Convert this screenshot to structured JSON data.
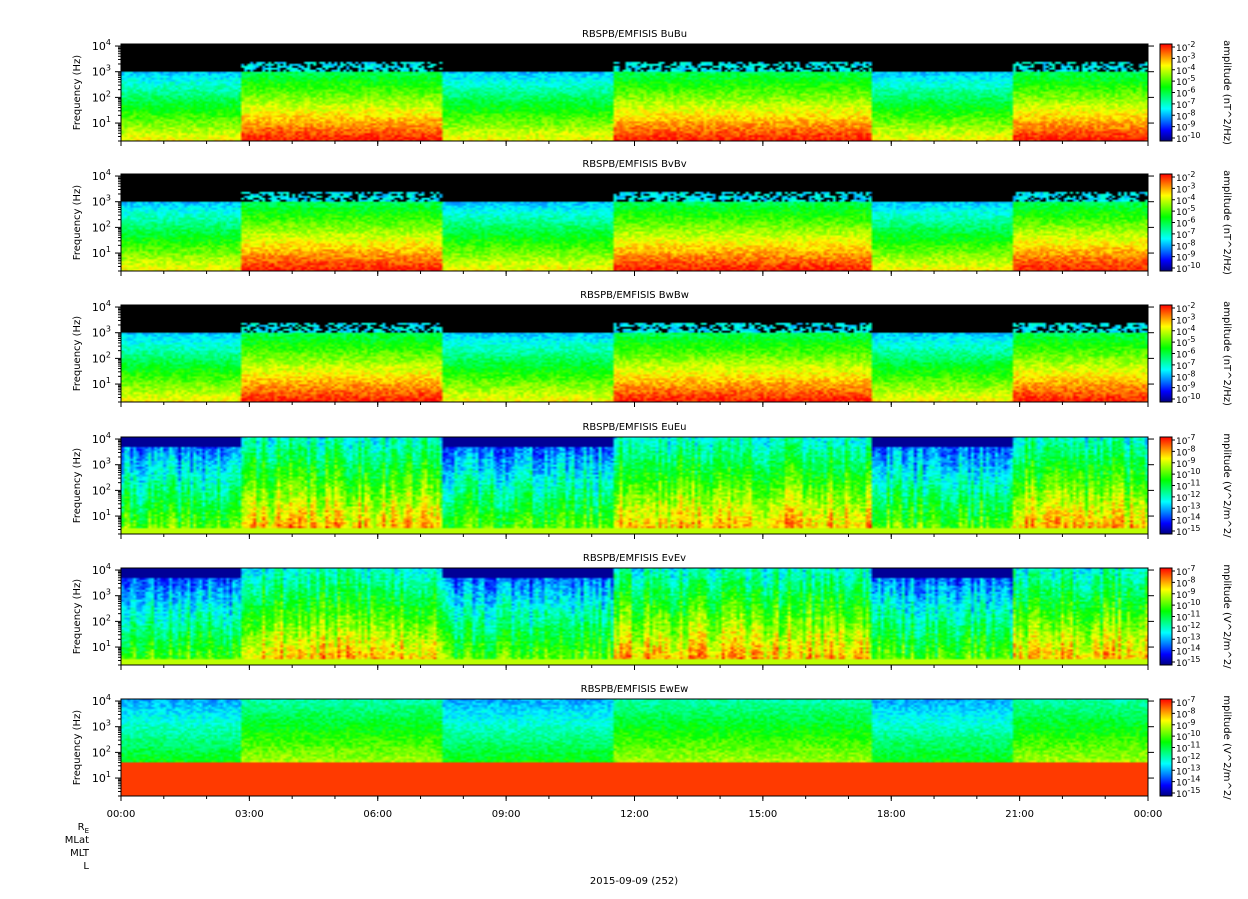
{
  "chart_data": {
    "type": "heatmap",
    "panels": [
      {
        "title": "RBSPB/EMFISIS  BuBu",
        "ylabel": "Frequency (Hz)",
        "cbar_label": "amplitude (nT^2/Hz)",
        "cbar_ticks": [
          "10",
          "10",
          "10",
          "10",
          "10",
          "10",
          "10",
          "10",
          "10"
        ],
        "cbar_exps": [
          "-2",
          "-3",
          "-4",
          "-5",
          "-6",
          "-7",
          "-8",
          "-9",
          "-10"
        ],
        "kind": "B",
        "seed": 11
      },
      {
        "title": "RBSPB/EMFISIS  BvBv",
        "ylabel": "Frequency (Hz)",
        "cbar_label": "amplitude (nT^2/Hz)",
        "cbar_ticks": [
          "10",
          "10",
          "10",
          "10",
          "10",
          "10",
          "10",
          "10",
          "10"
        ],
        "cbar_exps": [
          "-2",
          "-3",
          "-4",
          "-5",
          "-6",
          "-7",
          "-8",
          "-9",
          "-10"
        ],
        "kind": "B",
        "seed": 23
      },
      {
        "title": "RBSPB/EMFISIS  BwBw",
        "ylabel": "Frequency (Hz)",
        "cbar_label": "amplitude (nT^2/Hz)",
        "cbar_ticks": [
          "10",
          "10",
          "10",
          "10",
          "10",
          "10",
          "10",
          "10",
          "10"
        ],
        "cbar_exps": [
          "-2",
          "-3",
          "-4",
          "-5",
          "-6",
          "-7",
          "-8",
          "-9",
          "-10"
        ],
        "kind": "B",
        "seed": 37
      },
      {
        "title": "RBSPB/EMFISIS  EuEu",
        "ylabel": "Frequency (Hz)",
        "cbar_label": "mplitude (V^2/m^2/",
        "cbar_ticks": [
          "10",
          "10",
          "10",
          "10",
          "10",
          "10",
          "10",
          "10",
          "10"
        ],
        "cbar_exps": [
          "-7",
          "-8",
          "-9",
          "-10",
          "-11",
          "-12",
          "-13",
          "-14",
          "-15"
        ],
        "kind": "E",
        "seed": 41
      },
      {
        "title": "RBSPB/EMFISIS  EvEv",
        "ylabel": "Frequency (Hz)",
        "cbar_label": "mplitude (V^2/m^2/",
        "cbar_ticks": [
          "10",
          "10",
          "10",
          "10",
          "10",
          "10",
          "10",
          "10",
          "10"
        ],
        "cbar_exps": [
          "-7",
          "-8",
          "-9",
          "-10",
          "-11",
          "-12",
          "-13",
          "-14",
          "-15"
        ],
        "kind": "E",
        "seed": 53
      },
      {
        "title": "RBSPB/EMFISIS  EwEw",
        "ylabel": "Frequency (Hz)",
        "cbar_label": "mplitude (V^2/m^2/",
        "cbar_ticks": [
          "10",
          "10",
          "10",
          "10",
          "10",
          "10",
          "10",
          "10",
          "10"
        ],
        "cbar_exps": [
          "-7",
          "-8",
          "-9",
          "-10",
          "-11",
          "-12",
          "-13",
          "-14",
          "-15"
        ],
        "kind": "Ew",
        "seed": 67
      }
    ],
    "y_ticks": [
      {
        "base": "10",
        "exp": "1",
        "value": 10
      },
      {
        "base": "10",
        "exp": "2",
        "value": 100
      },
      {
        "base": "10",
        "exp": "3",
        "value": 1000
      },
      {
        "base": "10",
        "exp": "4",
        "value": 10000
      }
    ],
    "yscale": "log",
    "ylim": [
      2,
      12000
    ],
    "x_ticks": [
      "00:00",
      "03:00",
      "06:00",
      "09:00",
      "12:00",
      "15:00",
      "18:00",
      "21:00",
      "00:00"
    ],
    "x_tick_hours": [
      0,
      3,
      6,
      9,
      12,
      15,
      18,
      21,
      24
    ],
    "xlim_hours": [
      0,
      24
    ],
    "x_minor_hours": 1,
    "ephemeris_labels": [
      "R",
      "MLat",
      "MLT",
      "L"
    ],
    "ephemeris_subscript": "E",
    "xlabel": "2015-09-09 (252)",
    "colormap": [
      "#000080",
      "#0000ff",
      "#0080ff",
      "#00ffff",
      "#00ff80",
      "#00ff00",
      "#80ff00",
      "#ffff00",
      "#ff8000",
      "#ff0000"
    ]
  }
}
